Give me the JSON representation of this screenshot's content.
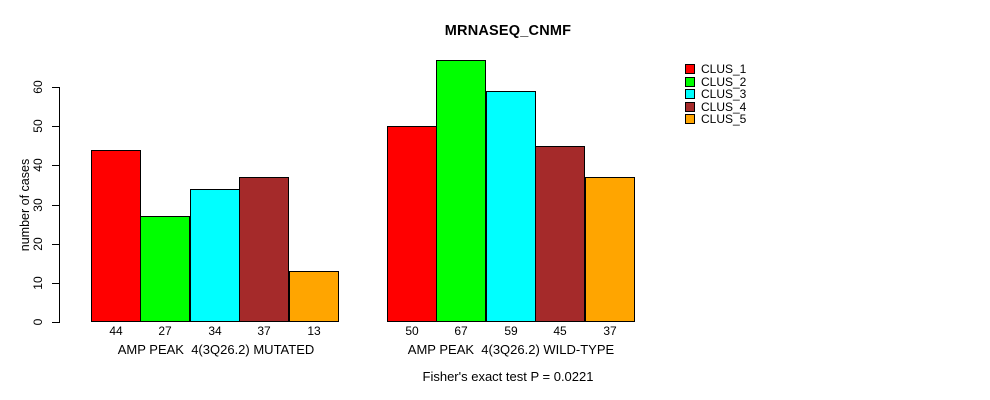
{
  "chart_data": {
    "type": "bar",
    "title": "MRNASEQ_CNMF",
    "ylabel": "number of cases",
    "xlabel": "",
    "ylim": [
      0,
      60
    ],
    "yticks": [
      0,
      10,
      20,
      30,
      40,
      50,
      60
    ],
    "grid": false,
    "bar_outline_color": "#000000",
    "legend_position": "top-right",
    "annotation": "Fisher's exact test P = 0.0221",
    "series": [
      {
        "name": "CLUS_1",
        "color": "#ff0000"
      },
      {
        "name": "CLUS_2",
        "color": "#00ff00"
      },
      {
        "name": "CLUS_3",
        "color": "#00ffff"
      },
      {
        "name": "CLUS_4",
        "color": "#a52a2a"
      },
      {
        "name": "CLUS_5",
        "color": "#ffa500"
      }
    ],
    "groups": [
      {
        "label": "AMP PEAK  4(3Q26.2) MUTATED",
        "values": [
          44,
          27,
          34,
          37,
          13
        ]
      },
      {
        "label": "AMP PEAK  4(3Q26.2) WILD-TYPE",
        "values": [
          50,
          67,
          59,
          45,
          37
        ]
      }
    ]
  }
}
